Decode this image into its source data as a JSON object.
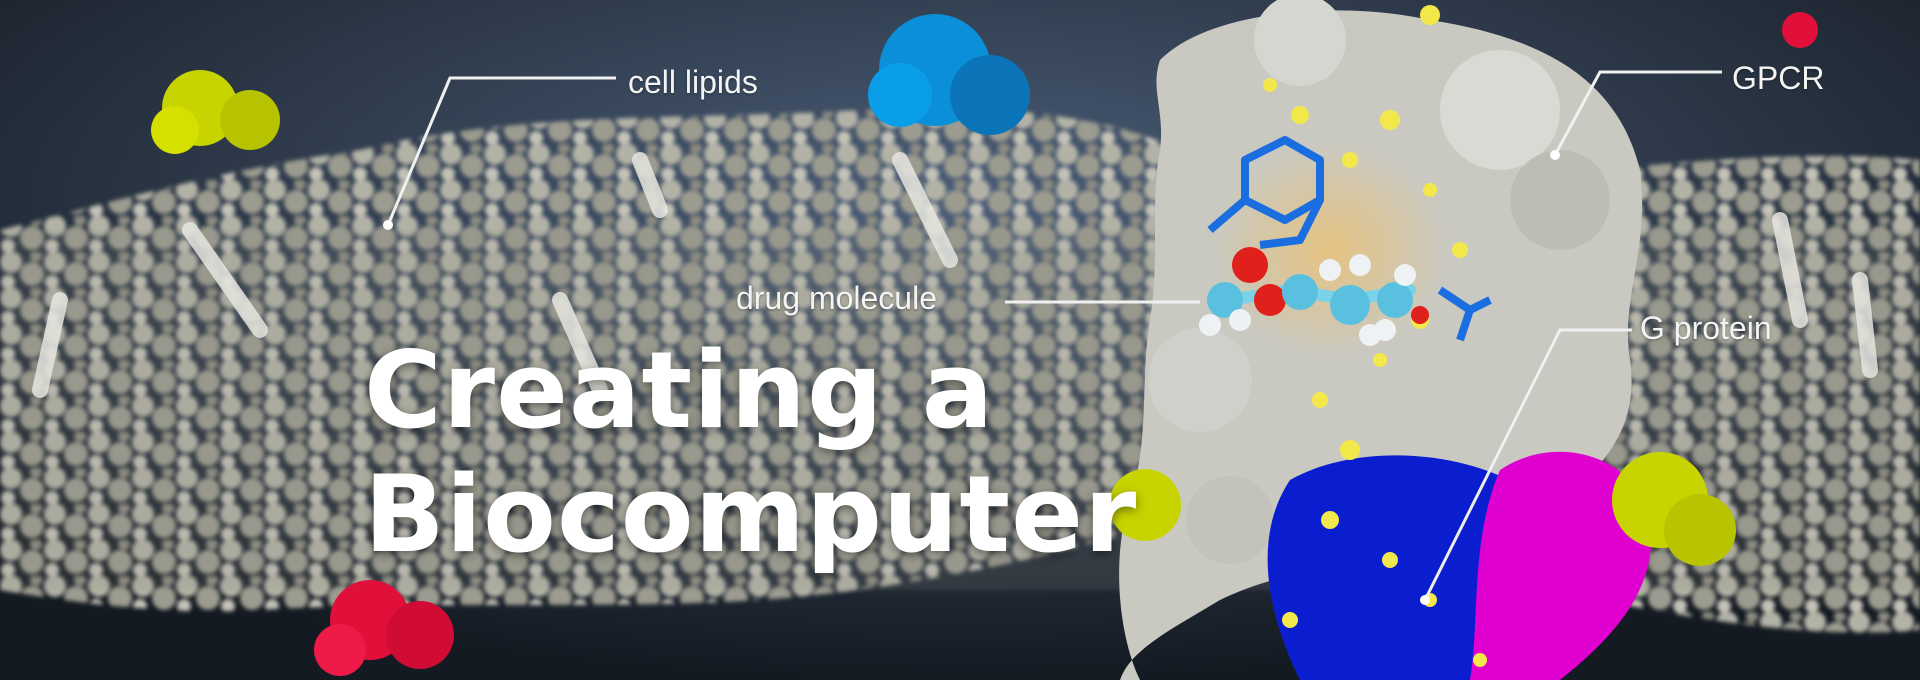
{
  "hero": {
    "title_line1": "Creating a",
    "title_line2": "Biocomputer"
  },
  "labels": {
    "cell_lipids": "cell lipids",
    "gpcr": "GPCR",
    "g_protein": "G protein",
    "drug_molecule": "drug molecule"
  },
  "colors": {
    "background": "#2a3544",
    "membrane": "#a9a89c",
    "receptor": "#c9c9c2",
    "g_protein_blue": "#0a1ed0",
    "g_protein_magenta": "#e000d0",
    "accent_yellow": "#c8d400",
    "accent_red": "#e0103a",
    "accent_cyan": "#0a8fd8"
  }
}
